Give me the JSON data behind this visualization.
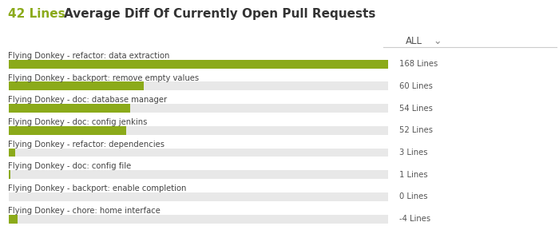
{
  "title_value": "42 Lines",
  "title_main": "  Average Diff Of Currently Open Pull Requests",
  "title_value_color": "#8baa1a",
  "title_main_color": "#333333",
  "dropdown_label": "ALL",
  "labels": [
    "Flying Donkey - refactor: data extraction",
    "Flying Donkey - backport: remove empty values",
    "Flying Donkey - doc: database manager",
    "Flying Donkey - doc: config jenkins",
    "Flying Donkey - refactor: dependencies",
    "Flying Donkey - doc: config file",
    "Flying Donkey - backport: enable completion",
    "Flying Donkey - chore: home interface"
  ],
  "values": [
    168,
    60,
    54,
    52,
    3,
    1,
    0,
    -4
  ],
  "value_labels": [
    "168 Lines",
    "60 Lines",
    "54 Lines",
    "52 Lines",
    "3 Lines",
    "1 Lines",
    "0 Lines",
    "-4 Lines"
  ],
  "bar_color": "#8baa1a",
  "bg_bar_color": "#e8e8e8",
  "background_color": "#ffffff",
  "label_color": "#444444",
  "value_color": "#555555",
  "max_value": 168,
  "figsize": [
    7.0,
    2.88
  ],
  "dpi": 100
}
